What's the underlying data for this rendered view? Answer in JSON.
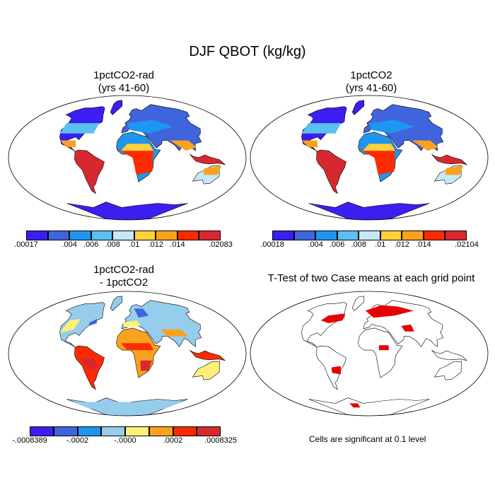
{
  "title": "DJF QBOT (kg/kg)",
  "panels": [
    {
      "title_line1": "1pctCO2-rad",
      "title_line2": "(yrs 41-60)"
    },
    {
      "title_line1": "1pctCO2",
      "title_line2": "(yrs 41-60)"
    },
    {
      "title_line1": "1pctCO2-rad",
      "title_line2": "- 1pctCO2"
    },
    {
      "title_line1": "T-Test of two Case means at each grid point",
      "title_line2": ""
    }
  ],
  "colorbars": [
    {
      "colors": [
        "#3a1ff0",
        "#3f64dc",
        "#1e96f0",
        "#5ac0f0",
        "#c8e8f8",
        "#ffd23c",
        "#f9a21e",
        "#ff2a00",
        "#d7282f"
      ],
      "labels": [
        ".00017",
        ".004",
        ".006",
        ".008",
        ".01",
        ".012",
        ".014",
        ".02083"
      ]
    },
    {
      "colors": [
        "#3a1ff0",
        "#3f64dc",
        "#1e96f0",
        "#5ac0f0",
        "#c8e8f8",
        "#ffd23c",
        "#f9a21e",
        "#ff2a00",
        "#d7282f"
      ],
      "labels": [
        ".00018",
        ".004",
        ".006",
        ".008",
        ".01",
        ".012",
        ".014",
        ".02104"
      ]
    },
    {
      "colors": [
        "#3a1ff0",
        "#3f64dc",
        "#1e96f0",
        "#96cdec",
        "#fff078",
        "#f9a21e",
        "#ff2a00",
        "#d7282f"
      ],
      "labels": [
        "-.0008389",
        "-.0002",
        "-.0000",
        ".0002",
        ".0008325"
      ]
    }
  ],
  "note": "Cells are significant at 0.1 level"
}
